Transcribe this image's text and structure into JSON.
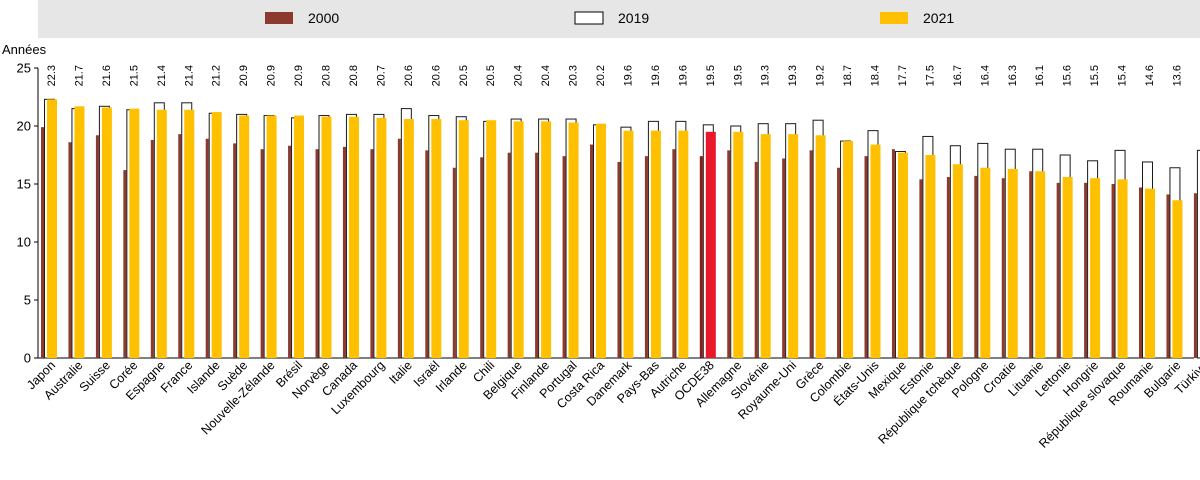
{
  "chart_data": {
    "type": "bar",
    "ylabel": "Années",
    "ylim": [
      0,
      25
    ],
    "yticks": [
      0,
      5,
      10,
      15,
      20,
      25
    ],
    "grid": false,
    "legend_placement": "top",
    "categories": [
      "Japon",
      "Australie",
      "Suisse",
      "Corée",
      "Espagne",
      "France",
      "Islande",
      "Suède",
      "Nouvelle-Zélande",
      "Brésil",
      "Norvège",
      "Canada",
      "Luxembourg",
      "Italie",
      "Israël",
      "Irlande",
      "Chili",
      "Belgique",
      "Finlande",
      "Portugal",
      "Costa Rica",
      "Danemark",
      "Pays-Bas",
      "Autriche",
      "OCDE38",
      "Allemagne",
      "Slovénie",
      "Royaume-Uni",
      "Grèce",
      "Colombie",
      "États-Unis",
      "Mexique",
      "Estonie",
      "République tchèque",
      "Pologne",
      "Croatie",
      "Lituanie",
      "Lettonie",
      "Hongrie",
      "République slovaque",
      "Roumanie",
      "Bulgarie",
      "Türkiye"
    ],
    "highlight_category": "OCDE38",
    "series": [
      {
        "name": "2000",
        "color": "#8c3a2e",
        "values": [
          19.9,
          18.6,
          19.2,
          16.2,
          18.8,
          19.3,
          18.9,
          18.5,
          18.0,
          18.3,
          18.0,
          18.2,
          18.0,
          18.9,
          17.9,
          16.4,
          17.3,
          17.7,
          17.7,
          17.4,
          18.4,
          16.9,
          17.4,
          18.0,
          17.4,
          17.9,
          16.9,
          17.2,
          17.9,
          16.4,
          17.4,
          18.0,
          15.4,
          15.6,
          15.7,
          15.5,
          16.1,
          15.1,
          15.1,
          15.0,
          14.7,
          14.1,
          14.2
        ]
      },
      {
        "name": "2019",
        "color": "#ffffff",
        "values": [
          22.3,
          21.5,
          21.7,
          21.4,
          22.0,
          22.0,
          21.1,
          21.0,
          20.9,
          20.7,
          20.9,
          21.0,
          21.0,
          21.5,
          20.9,
          20.8,
          20.4,
          20.6,
          20.6,
          20.6,
          20.1,
          19.9,
          20.4,
          20.4,
          20.1,
          20.0,
          20.2,
          20.2,
          20.5,
          18.7,
          19.6,
          17.8,
          19.1,
          18.3,
          18.5,
          18.0,
          18.0,
          17.5,
          17.0,
          17.9,
          16.9,
          16.4,
          17.9
        ]
      },
      {
        "name": "2021",
        "color": "#ffc000",
        "values": [
          22.3,
          21.7,
          21.6,
          21.5,
          21.4,
          21.4,
          21.2,
          20.9,
          20.9,
          20.9,
          20.8,
          20.8,
          20.7,
          20.6,
          20.6,
          20.5,
          20.5,
          20.4,
          20.4,
          20.3,
          20.2,
          19.6,
          19.6,
          19.6,
          19.5,
          19.5,
          19.3,
          19.3,
          19.2,
          18.7,
          18.4,
          17.7,
          17.5,
          16.7,
          16.4,
          16.3,
          16.1,
          15.6,
          15.5,
          15.4,
          14.6,
          13.6,
          null
        ]
      }
    ],
    "data_labels": [
      "22.3",
      "21.7",
      "21.6",
      "21.5",
      "21.4",
      "21.4",
      "21.2",
      "20.9",
      "20.9",
      "20.9",
      "20.8",
      "20.8",
      "20.7",
      "20.6",
      "20.6",
      "20.5",
      "20.5",
      "20.4",
      "20.4",
      "20.3",
      "20.2",
      "19.6",
      "19.6",
      "19.6",
      "19.5",
      "19.5",
      "19.3",
      "19.3",
      "19.2",
      "18.7",
      "18.4",
      "17.7",
      "17.5",
      "16.7",
      "16.4",
      "16.3",
      "16.1",
      "15.6",
      "15.5",
      "15.4",
      "14.6",
      "13.6",
      ""
    ],
    "colors": {
      "highlight_2000": "#8b1a1a",
      "highlight_2021": "#e8192c",
      "legend_band": "#e6e6e6"
    }
  }
}
